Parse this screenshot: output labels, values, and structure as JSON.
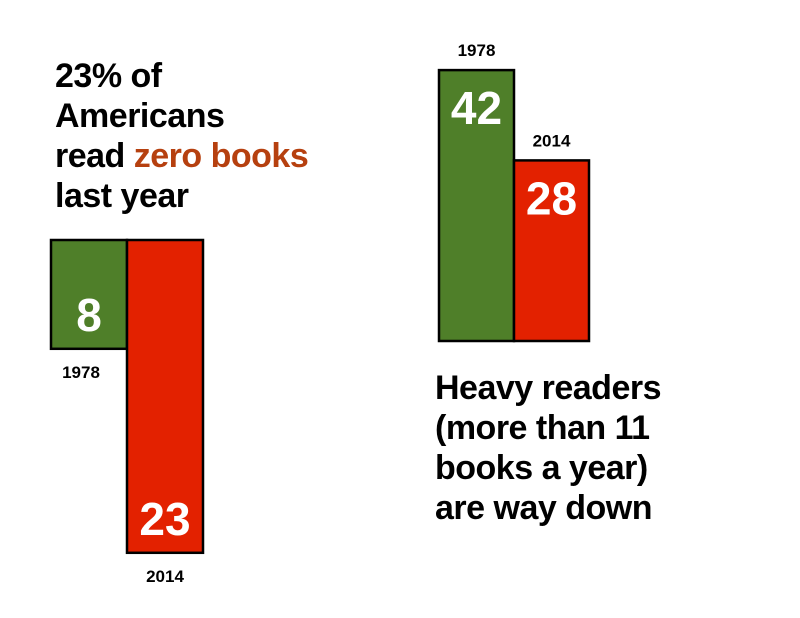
{
  "left_headline": {
    "line1": "23% of",
    "line2": "Americans",
    "line3_prefix": "read ",
    "line3_highlight": "zero books",
    "line4": "last year",
    "highlight_color": "#b6400f"
  },
  "right_headline": {
    "line1": "Heavy readers",
    "line2": "(more than 11",
    "line3": "books a year)",
    "line4": "are way down"
  },
  "colors": {
    "green": "#4f7f29",
    "red": "#e32100"
  },
  "chart_data": [
    {
      "type": "bar",
      "categories": [
        "1978",
        "2014"
      ],
      "values": [
        8,
        23
      ],
      "title": "23% of Americans read zero books last year",
      "unit": "%",
      "colors": [
        "#4f7f29",
        "#e32100"
      ]
    },
    {
      "type": "bar",
      "categories": [
        "1978",
        "2014"
      ],
      "values": [
        42,
        28
      ],
      "title": "Heavy readers (more than 11 books a year) are way down",
      "unit": "%",
      "colors": [
        "#4f7f29",
        "#e32100"
      ]
    }
  ]
}
